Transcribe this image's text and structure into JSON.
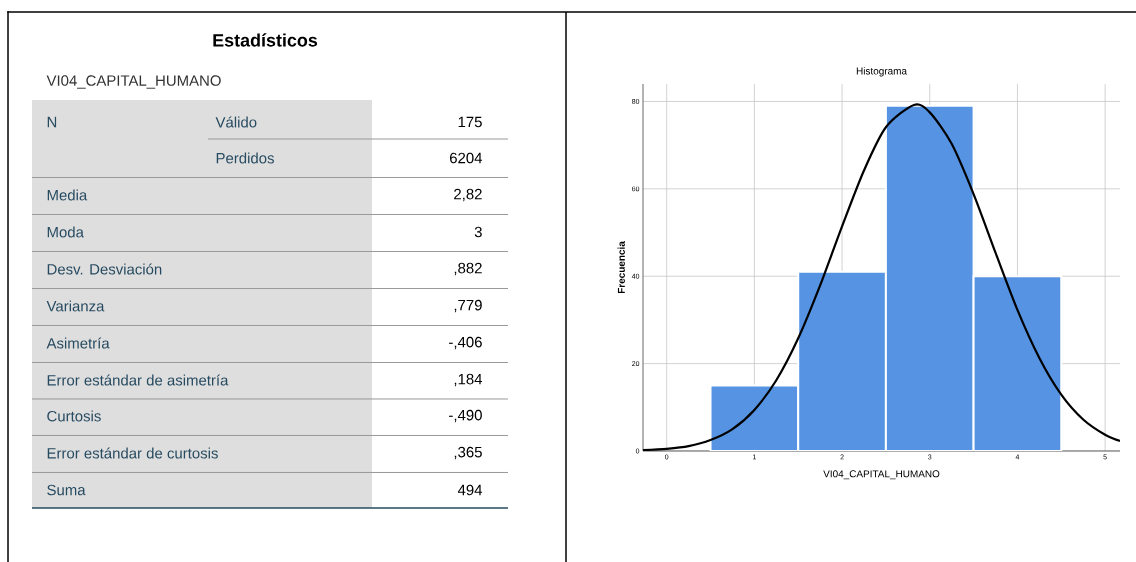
{
  "chart_data": [
    {
      "type": "other",
      "title": "Estadísticos",
      "subtitle": "VI04_CAPITAL_HUMANO",
      "annotations": [
        "N",
        "Válido",
        "175",
        "Perdidos",
        "6204",
        "Media",
        "2,82",
        "Moda",
        "3",
        "Desv. Desviación",
        ",882",
        "Varianza",
        ",779",
        "Asimetría",
        "-,406",
        "Error estándar de asimetría",
        ",184",
        "Curtosis",
        "-,490",
        "Error estándar de curtosis",
        ",365",
        "Suma",
        "494"
      ]
    },
    {
      "type": "histogram",
      "title": "Histograma",
      "xlabel": "VI04_CAPITAL_HUMANO",
      "ylabel": "Frecuencia",
      "bins": [
        0.5,
        1.5,
        2.5,
        3.5,
        4.5
      ],
      "values": [
        15,
        41,
        79,
        40
      ],
      "color": "#5694e3",
      "series": [
        {
          "type": "line",
          "color": "#000000",
          "x": [
            -0.27,
            0,
            0.25,
            0.5,
            0.75,
            1,
            1.25,
            1.5,
            1.75,
            2,
            2.25,
            2.5,
            2.82,
            3,
            3.25,
            3.5,
            3.75,
            4,
            4.25,
            4.5,
            4.75,
            5,
            5.17
          ],
          "values": [
            0.2,
            0.5,
            1.1,
            2.5,
            5.0,
            9.4,
            16.2,
            25.8,
            37.9,
            51.4,
            64.2,
            74.1,
            79.2,
            77.5,
            70.3,
            58.8,
            45.4,
            32.3,
            21.3,
            12.9,
            7.2,
            3.7,
            2.3
          ]
        }
      ],
      "xlim": [
        -0.27,
        5.17
      ],
      "ylim": [
        0,
        84
      ],
      "xticks": [
        0,
        1,
        2,
        3,
        4,
        5
      ],
      "yticks": [
        0,
        20,
        40,
        60,
        80
      ],
      "grid": true
    }
  ]
}
